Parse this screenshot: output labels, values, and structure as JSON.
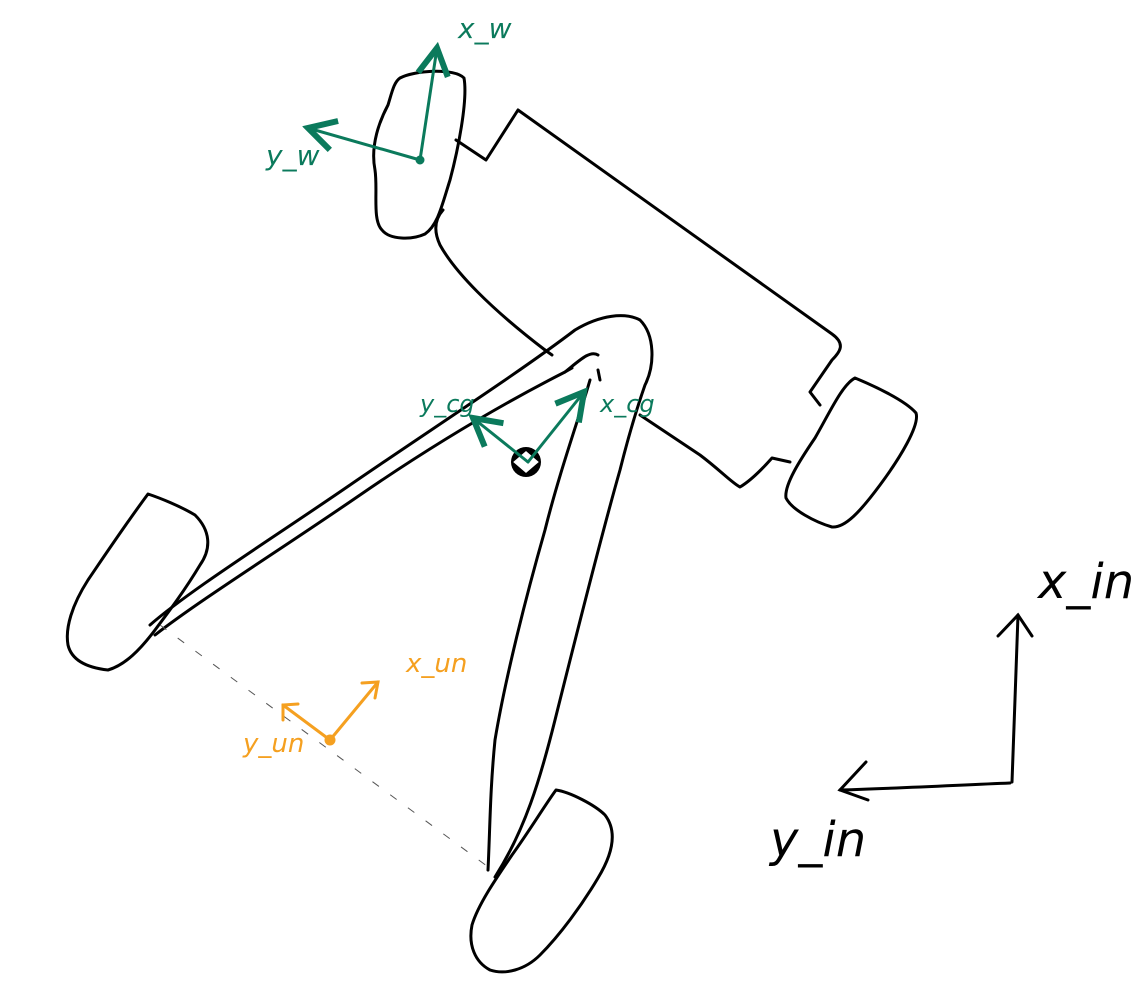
{
  "colors": {
    "ink": "#000000",
    "frame_green": "#0b7a5c",
    "unicycle_orange": "#f5a020",
    "background": "#ffffff"
  },
  "frames": {
    "wheel": {
      "x_label": "x_w",
      "y_label": "y_w"
    },
    "cg": {
      "x_label": "x_cg",
      "y_label": "y_cg"
    },
    "unicycle": {
      "x_label": "x_un",
      "y_label": "y_un"
    },
    "inertial": {
      "x_label": "x_in",
      "y_label": "y_in"
    }
  }
}
